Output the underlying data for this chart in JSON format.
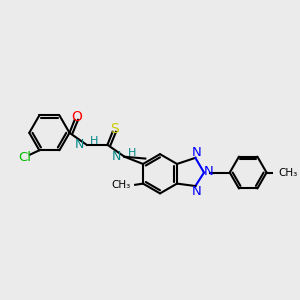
{
  "background_color": "#ebebeb",
  "bond_color": "#000000",
  "bond_lw": 1.5,
  "cl_color": "#00bb00",
  "o_color": "#ff0000",
  "s_color": "#cccc00",
  "n_color": "#0000ff",
  "nh_color": "#008888",
  "xlim": [
    0,
    11.0
  ],
  "ylim": [
    2.0,
    9.0
  ],
  "figsize": [
    3.0,
    3.0
  ],
  "dpi": 100
}
